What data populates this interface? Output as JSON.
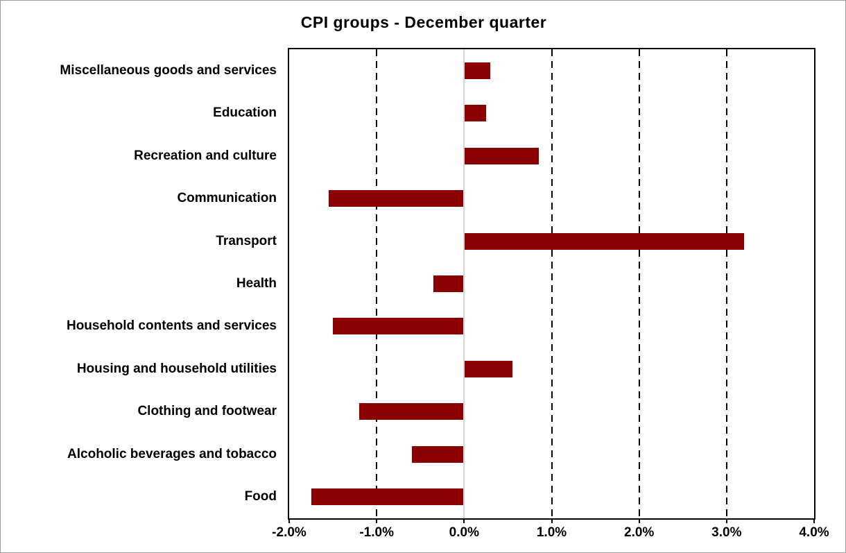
{
  "window": {
    "background_color": "#ffffff",
    "border_color": "#9b9b9b"
  },
  "chart_data": {
    "type": "bar",
    "orientation": "horizontal",
    "title": "CPI groups - December quarter",
    "categories": [
      "Miscellaneous goods and services",
      "Education",
      "Recreation and culture",
      "Communication",
      "Transport",
      "Health",
      "Household contents and services",
      "Housing and household utilities",
      "Clothing and footwear",
      "Alcoholic beverages and tobacco",
      "Food"
    ],
    "values": [
      0.3,
      0.25,
      0.85,
      -1.55,
      3.2,
      -0.35,
      -1.5,
      0.55,
      -1.2,
      -0.6,
      -1.75
    ],
    "value_unit": "%",
    "bar_color": "#8B0000",
    "xlabel": "",
    "ylabel": "",
    "xlim": [
      -2.0,
      4.0
    ],
    "xticks": [
      {
        "value": -2.0,
        "label": "-2.0%"
      },
      {
        "value": -1.0,
        "label": "-1.0%"
      },
      {
        "value": 0.0,
        "label": "0.0%"
      },
      {
        "value": 1.0,
        "label": "1.0%"
      },
      {
        "value": 2.0,
        "label": "2.0%"
      },
      {
        "value": 3.0,
        "label": "3.0%"
      },
      {
        "value": 4.0,
        "label": "4.0%"
      }
    ],
    "grid": "vertical dashed black gridlines at each 1.0% interval",
    "zero_line_color": "#d6d6d6",
    "legend": "none",
    "plot_border_color": "#000000"
  }
}
